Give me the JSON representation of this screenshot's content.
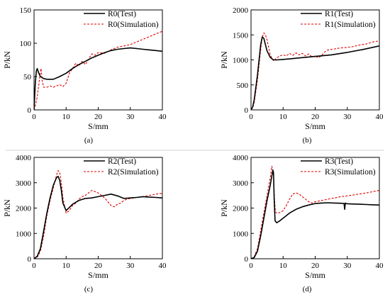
{
  "chart_data": [
    {
      "type": "line",
      "panel_label": "(a)",
      "xlabel": "S/mm",
      "ylabel": "P/kN",
      "xlim": [
        0,
        40
      ],
      "ylim": [
        0,
        150
      ],
      "xticks": [
        "0",
        "10",
        "20",
        "30",
        "40"
      ],
      "yticks": [
        "0",
        "50",
        "100",
        "150"
      ],
      "legend_position": "top-right",
      "series": [
        {
          "name": "R0(Test)",
          "color": "#000000",
          "style": "solid",
          "x": [
            0,
            0.4,
            0.7,
            1.0,
            1.4,
            2.0,
            3,
            4,
            5,
            6,
            8,
            10,
            12,
            14,
            16,
            18,
            20,
            22,
            24,
            26,
            28,
            30,
            32,
            34,
            36,
            38,
            40
          ],
          "y": [
            0,
            40,
            58,
            62,
            56,
            50,
            47,
            46,
            46,
            46,
            50,
            55,
            62,
            68,
            73,
            78,
            82,
            86,
            89,
            91,
            92,
            93,
            92,
            91,
            90,
            89,
            88
          ]
        },
        {
          "name": "R0(Simulation)",
          "color": "#e00000",
          "style": "dashed",
          "x": [
            0,
            0.5,
            1,
            1.5,
            2,
            2.2,
            2.5,
            3,
            4,
            5,
            6,
            7,
            8,
            9,
            10,
            11,
            12,
            13,
            14,
            15,
            16,
            17,
            18,
            19,
            20,
            22,
            24,
            26,
            28,
            30,
            32,
            34,
            36,
            38,
            40
          ],
          "y": [
            0,
            8,
            20,
            38,
            58,
            62,
            45,
            34,
            34,
            36,
            34,
            36,
            38,
            35,
            40,
            55,
            62,
            70,
            66,
            73,
            68,
            76,
            84,
            82,
            86,
            85,
            90,
            94,
            96,
            98,
            102,
            106,
            110,
            114,
            118
          ]
        }
      ]
    },
    {
      "type": "line",
      "panel_label": "(b)",
      "xlabel": "S/mm",
      "ylabel": "P/kN",
      "xlim": [
        0,
        40
      ],
      "ylim": [
        0,
        2000
      ],
      "xticks": [
        "0",
        "10",
        "20",
        "30",
        "40"
      ],
      "yticks": [
        "0",
        "500",
        "1000",
        "1500",
        "2000"
      ],
      "legend_position": "top-right",
      "series": [
        {
          "name": "R1(Test)",
          "color": "#000000",
          "style": "solid",
          "x": [
            0,
            0.5,
            1,
            2,
            3,
            3.5,
            4,
            4.5,
            5,
            6,
            7,
            8,
            10,
            12,
            15,
            20,
            25,
            30,
            35,
            40
          ],
          "y": [
            0,
            60,
            200,
            700,
            1300,
            1460,
            1430,
            1300,
            1180,
            1050,
            1000,
            1000,
            1010,
            1020,
            1040,
            1070,
            1100,
            1150,
            1210,
            1280
          ]
        },
        {
          "name": "R1(Simulation)",
          "color": "#e00000",
          "style": "dashed",
          "x": [
            0,
            0.5,
            1,
            2,
            3,
            3.5,
            4,
            4.5,
            5,
            5.5,
            6,
            7,
            8,
            9,
            10,
            11,
            12,
            13,
            14,
            15,
            16,
            17,
            18,
            19,
            20,
            21,
            22,
            23,
            24,
            26,
            28,
            30,
            32,
            34,
            36,
            38,
            40
          ],
          "y": [
            0,
            40,
            150,
            600,
            1200,
            1450,
            1540,
            1500,
            1400,
            1250,
            1100,
            980,
            1040,
            1080,
            1100,
            1080,
            1130,
            1090,
            1140,
            1100,
            1130,
            1080,
            1120,
            1060,
            1080,
            1040,
            1090,
            1160,
            1200,
            1220,
            1240,
            1250,
            1270,
            1300,
            1320,
            1360,
            1380
          ]
        }
      ]
    },
    {
      "type": "line",
      "panel_label": "(c)",
      "xlabel": "S/mm",
      "ylabel": "P/kN",
      "xlim": [
        0,
        40
      ],
      "ylim": [
        0,
        4000
      ],
      "xticks": [
        "0",
        "10",
        "20",
        "30",
        "40"
      ],
      "yticks": [
        "0",
        "1000",
        "2000",
        "3000",
        "4000"
      ],
      "legend_position": "top-right",
      "series": [
        {
          "name": "R2(Test)",
          "color": "#000000",
          "style": "solid",
          "x": [
            0,
            1,
            2,
            3,
            4,
            5,
            6,
            7,
            7.5,
            8,
            8.5,
            9,
            10,
            12,
            14,
            16,
            18,
            20,
            22,
            24,
            26,
            28,
            30,
            32,
            34,
            36,
            38,
            40
          ],
          "y": [
            0,
            100,
            400,
            1100,
            1800,
            2400,
            2900,
            3200,
            3250,
            3100,
            2700,
            2200,
            1900,
            2150,
            2300,
            2380,
            2400,
            2450,
            2500,
            2550,
            2480,
            2380,
            2400,
            2420,
            2450,
            2430,
            2420,
            2400
          ]
        },
        {
          "name": "R2(Simulation)",
          "color": "#e00000",
          "style": "dashed",
          "x": [
            0,
            1,
            2,
            3,
            4,
            5,
            6,
            7,
            7.5,
            8,
            8.5,
            9,
            10,
            11,
            12,
            13,
            14,
            15,
            16,
            17,
            18,
            19,
            20,
            21,
            22,
            23,
            24,
            25,
            26,
            27,
            28,
            29,
            30,
            32,
            34,
            36,
            38,
            40
          ],
          "y": [
            0,
            50,
            300,
            900,
            1700,
            2300,
            2800,
            3300,
            3480,
            3400,
            3000,
            2400,
            1800,
            1900,
            2100,
            2200,
            2350,
            2450,
            2500,
            2600,
            2700,
            2650,
            2600,
            2500,
            2400,
            2250,
            2100,
            2050,
            2150,
            2200,
            2300,
            2350,
            2380,
            2420,
            2450,
            2500,
            2550,
            2580
          ]
        }
      ]
    },
    {
      "type": "line",
      "panel_label": "(d)",
      "xlabel": "S/mm",
      "ylabel": "P/kN",
      "xlim": [
        0,
        40
      ],
      "ylim": [
        0,
        4000
      ],
      "xticks": [
        "0",
        "10",
        "20",
        "30",
        "40"
      ],
      "yticks": [
        "0",
        "1000",
        "2000",
        "3000",
        "4000"
      ],
      "legend_position": "top-right",
      "series": [
        {
          "name": "R3(Test)",
          "color": "#000000",
          "style": "solid",
          "x": [
            0,
            1,
            2,
            3,
            4,
            5,
            6,
            6.8,
            7,
            7.2,
            7.5,
            8,
            9,
            10,
            12,
            14,
            16,
            18,
            20,
            22,
            24,
            26,
            28,
            29,
            29.2,
            29.4,
            29.6,
            30,
            32,
            34,
            36,
            38,
            40
          ],
          "y": [
            0,
            50,
            300,
            900,
            1600,
            2300,
            2900,
            3500,
            3400,
            2400,
            1500,
            1420,
            1500,
            1600,
            1800,
            1950,
            2050,
            2120,
            2180,
            2200,
            2210,
            2200,
            2190,
            2180,
            1950,
            2200,
            2180,
            2170,
            2160,
            2150,
            2140,
            2130,
            2120
          ]
        },
        {
          "name": "R3(Simulation)",
          "color": "#e00000",
          "style": "dashed",
          "x": [
            0,
            1,
            2,
            3,
            4,
            5,
            6,
            6.5,
            7,
            7.3,
            7.6,
            8,
            9,
            10,
            11,
            12,
            13,
            14,
            15,
            16,
            17,
            18,
            19,
            20,
            22,
            24,
            26,
            28,
            30,
            32,
            34,
            36,
            38,
            40
          ],
          "y": [
            0,
            80,
            400,
            1100,
            1800,
            2500,
            3200,
            3650,
            3300,
            2400,
            1850,
            1800,
            1820,
            1900,
            2100,
            2350,
            2550,
            2600,
            2550,
            2450,
            2350,
            2250,
            2200,
            2250,
            2300,
            2350,
            2400,
            2450,
            2480,
            2520,
            2560,
            2600,
            2650,
            2700
          ]
        }
      ]
    }
  ]
}
